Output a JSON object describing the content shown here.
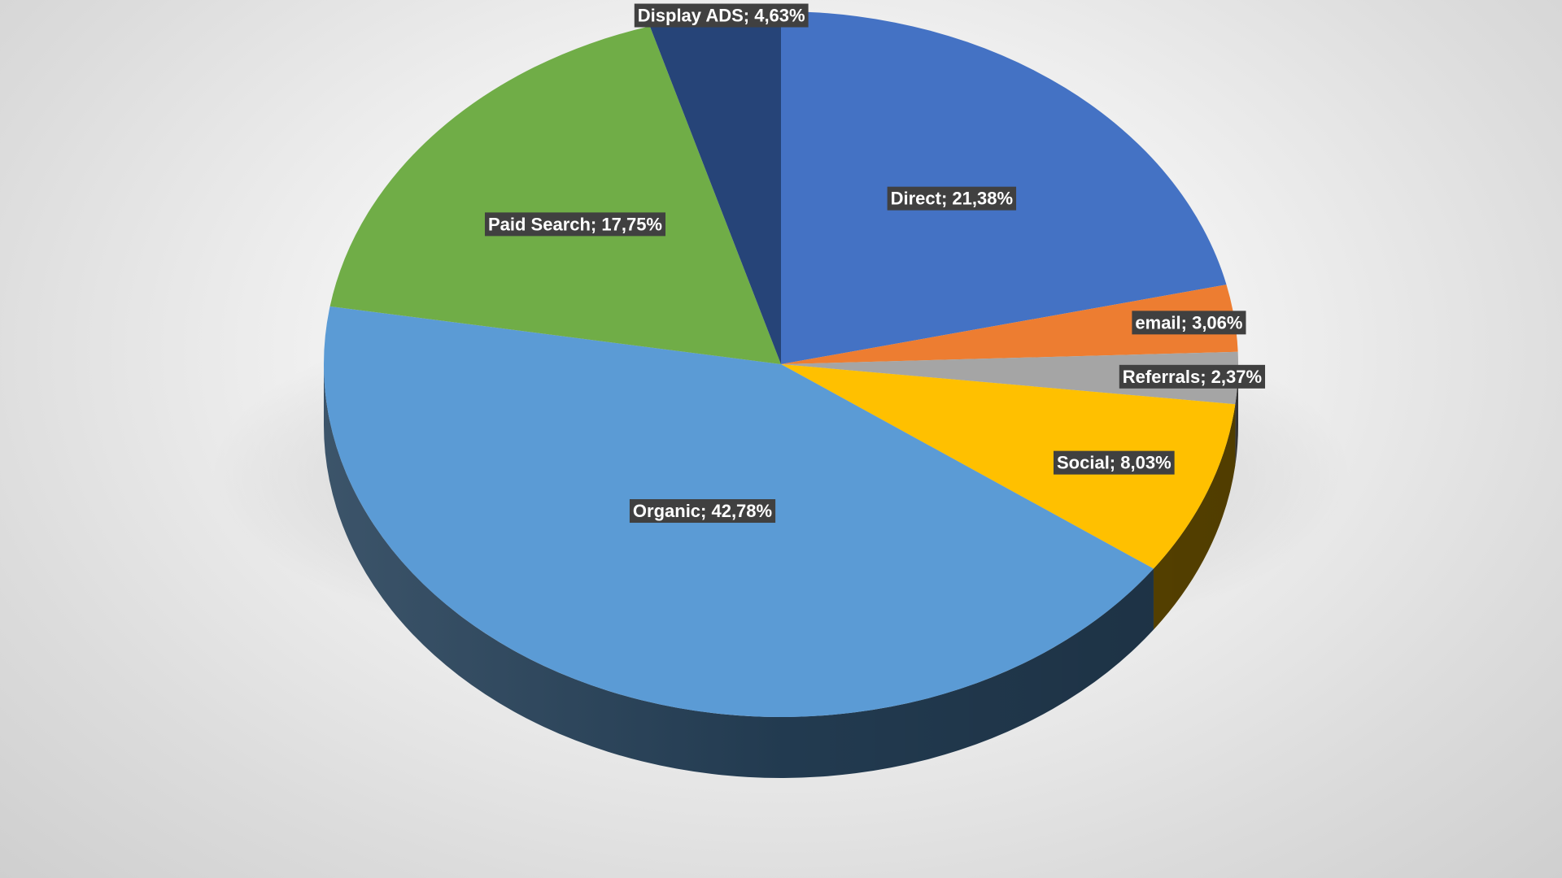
{
  "chart_data": {
    "type": "pie",
    "style": "3d",
    "label_separator": "; ",
    "slices": [
      {
        "label": "Direct",
        "value": 21.38,
        "display": "21,38%",
        "color": "#4472C4"
      },
      {
        "label": "email",
        "value": 3.06,
        "display": "3,06%",
        "color": "#ED7D31"
      },
      {
        "label": "Referrals",
        "value": 2.37,
        "display": "2,37%",
        "color": "#A5A5A5"
      },
      {
        "label": "Social",
        "value": 8.03,
        "display": "8,03%",
        "color": "#FFC000"
      },
      {
        "label": "Organic",
        "value": 42.78,
        "display": "42,78%",
        "color": "#5B9BD5"
      },
      {
        "label": "Paid Search",
        "value": 17.75,
        "display": "17,75%",
        "color": "#70AD47"
      },
      {
        "label": "Display ADS",
        "value": 4.63,
        "display": "4,63%",
        "color": "#264478"
      }
    ],
    "label_background": "#404040",
    "label_color": "#ffffff"
  }
}
